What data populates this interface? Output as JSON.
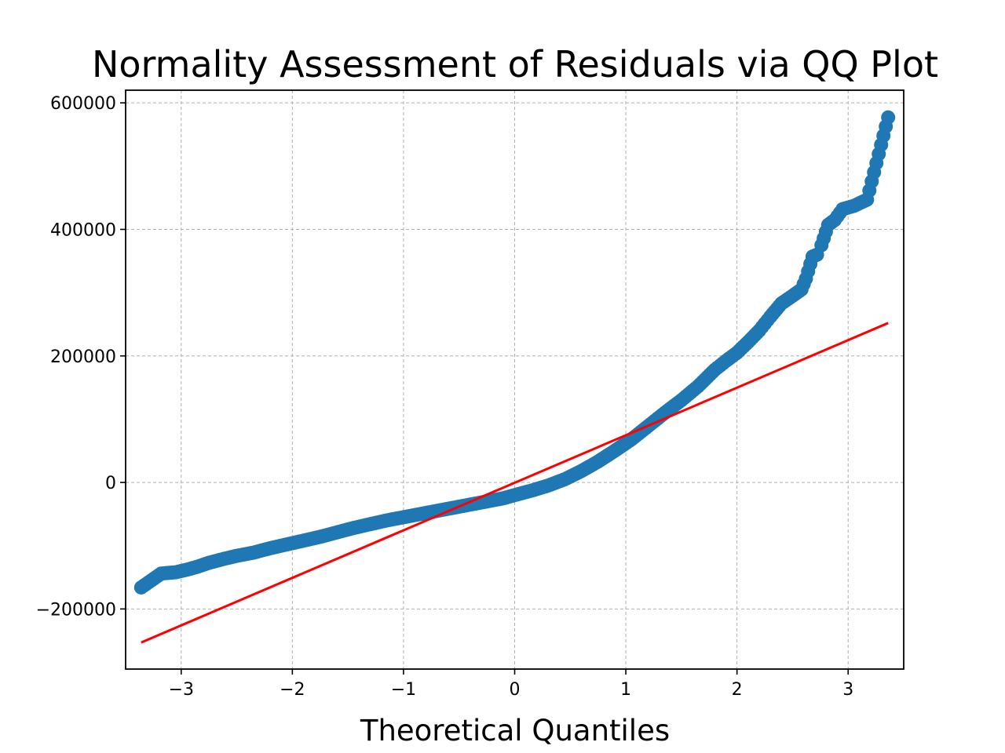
{
  "chart_data": {
    "type": "scatter",
    "title": "Normality Assessment of Residuals via QQ Plot",
    "xlabel": "Theoretical Quantiles",
    "ylabel": "",
    "xlim": [
      -3.5,
      3.5
    ],
    "ylim": [
      -295000,
      620000
    ],
    "x_ticks": [
      -3,
      -2,
      -1,
      0,
      1,
      2,
      3
    ],
    "x_tick_labels": [
      "−3",
      "−2",
      "−1",
      "0",
      "1",
      "2",
      "3"
    ],
    "y_ticks": [
      -200000,
      0,
      200000,
      400000,
      600000
    ],
    "y_tick_labels": [
      "−200000",
      "0",
      "200000",
      "400000",
      "600000"
    ],
    "grid": true,
    "colors": {
      "points": "#1f77b4",
      "reference_line": "#ff0000"
    },
    "series": [
      {
        "type": "scatter",
        "x": [
          -3.36,
          -3.18,
          -3.05,
          -2.95,
          -2.85,
          -2.75,
          -2.62,
          -2.5,
          -2.35,
          -2.2,
          -2.05,
          -1.9,
          -1.75,
          -1.6,
          -1.45,
          -1.3,
          -1.15,
          -1.0,
          -0.85,
          -0.7,
          -0.55,
          -0.4,
          -0.25,
          -0.1,
          0.0,
          0.15,
          0.3,
          0.45,
          0.6,
          0.75,
          0.9,
          1.05,
          1.2,
          1.35,
          1.5,
          1.65,
          1.8,
          1.9,
          2.0,
          2.1,
          2.2,
          2.3,
          2.4,
          2.5,
          2.58,
          2.62,
          2.68,
          2.72,
          2.76,
          2.82,
          2.88,
          2.95,
          3.05,
          3.17,
          3.36
        ],
        "y": [
          -166000,
          -144000,
          -142000,
          -138000,
          -133000,
          -127000,
          -121000,
          -116000,
          -111000,
          -104000,
          -98000,
          -92000,
          -86000,
          -79000,
          -72000,
          -66000,
          -60000,
          -55000,
          -50000,
          -45000,
          -40000,
          -35000,
          -30000,
          -25000,
          -20000,
          -13000,
          -5000,
          5000,
          18000,
          33000,
          50000,
          68000,
          89000,
          110000,
          130000,
          152000,
          178000,
          192000,
          205000,
          222000,
          240000,
          262000,
          283000,
          295000,
          305000,
          322000,
          357000,
          360000,
          375000,
          407000,
          415000,
          432000,
          437000,
          447000,
          577000
        ]
      },
      {
        "type": "line",
        "name": "",
        "x": [
          -3.36,
          3.36
        ],
        "y": [
          -253000,
          252000
        ]
      }
    ]
  }
}
